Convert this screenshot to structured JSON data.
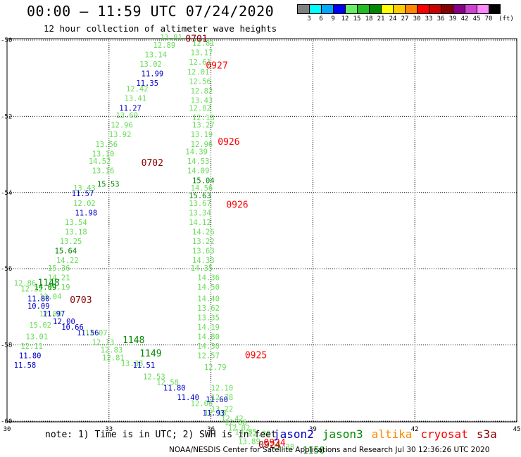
{
  "header": {
    "title": "00:00 – 11:59 UTC 07/24/2020",
    "subtitle": "12 hour collection of altimeter wave heights"
  },
  "colorbar": {
    "colors": [
      "#808080",
      "#00ffff",
      "#00a8ff",
      "#0000ff",
      "#66ee66",
      "#22bb22",
      "#008800",
      "#ffff00",
      "#ffcc00",
      "#ff8800",
      "#ff0000",
      "#cc0000",
      "#880000",
      "#880088",
      "#cc44cc",
      "#ff88ff",
      "#000000"
    ],
    "labels": [
      "3",
      "6",
      "9",
      "12",
      "15",
      "18",
      "21",
      "24",
      "27",
      "30",
      "33",
      "36",
      "39",
      "42",
      "45",
      "70"
    ],
    "unit": "(ft)"
  },
  "axes": {
    "lon_ticks": [
      "30",
      "33",
      "36",
      "39",
      "42",
      "45"
    ],
    "lat_ticks": [
      "-50",
      "-52",
      "-54",
      "-56",
      "-58",
      "-60"
    ]
  },
  "tracks": [
    {
      "sat": "jason3_light",
      "color": "#66dd55",
      "points": [
        {
          "lon": 34.5,
          "lat": -50.0,
          "v": "13.81"
        },
        {
          "lon": 35.45,
          "lat": -50.15,
          "v": "12.81"
        },
        {
          "lon": 34.3,
          "lat": -50.2,
          "v": "12.89"
        },
        {
          "lon": 35.4,
          "lat": -50.4,
          "v": "13.17"
        },
        {
          "lon": 34.05,
          "lat": -50.45,
          "v": "13.14"
        },
        {
          "lon": 35.35,
          "lat": -50.65,
          "v": "12.61"
        },
        {
          "lon": 33.9,
          "lat": -50.7,
          "v": "13.02"
        },
        {
          "lon": 35.3,
          "lat": -50.9,
          "v": "12.01"
        },
        {
          "lon": 35.35,
          "lat": -51.15,
          "v": "12.56"
        },
        {
          "lon": 33.5,
          "lat": -51.35,
          "v": "12.42"
        },
        {
          "lon": 35.4,
          "lat": -51.4,
          "v": "12.82"
        },
        {
          "lon": 33.45,
          "lat": -51.6,
          "v": "13.41"
        },
        {
          "lon": 35.4,
          "lat": -51.65,
          "v": "13.43"
        },
        {
          "lon": 35.35,
          "lat": -51.85,
          "v": "12.82"
        },
        {
          "lon": 33.2,
          "lat": -52.05,
          "v": "13.60"
        },
        {
          "lon": 35.45,
          "lat": -52.1,
          "v": "12.18"
        },
        {
          "lon": 33.05,
          "lat": -52.3,
          "v": "12.96"
        },
        {
          "lon": 35.45,
          "lat": -52.3,
          "v": "13.27"
        },
        {
          "lon": 33.0,
          "lat": -52.55,
          "v": "13.92"
        },
        {
          "lon": 35.4,
          "lat": -52.55,
          "v": "13.19"
        },
        {
          "lon": 32.6,
          "lat": -52.8,
          "v": "13.56"
        },
        {
          "lon": 35.4,
          "lat": -52.8,
          "v": "12.96"
        },
        {
          "lon": 32.5,
          "lat": -53.05,
          "v": "13.10"
        },
        {
          "lon": 35.25,
          "lat": -53.0,
          "v": "14.39"
        },
        {
          "lon": 32.4,
          "lat": -53.25,
          "v": "14.52"
        },
        {
          "lon": 35.3,
          "lat": -53.25,
          "v": "14.53"
        },
        {
          "lon": 32.5,
          "lat": -53.5,
          "v": "13.16"
        },
        {
          "lon": 35.3,
          "lat": -53.5,
          "v": "14.09"
        },
        {
          "lon": 31.95,
          "lat": -53.95,
          "v": "13.43"
        },
        {
          "lon": 35.4,
          "lat": -53.95,
          "v": "14.56"
        },
        {
          "lon": 31.95,
          "lat": -54.35,
          "v": "12.02"
        },
        {
          "lon": 35.35,
          "lat": -54.35,
          "v": "13.67"
        },
        {
          "lon": 35.35,
          "lat": -54.6,
          "v": "13.34"
        },
        {
          "lon": 31.7,
          "lat": -54.85,
          "v": "13.54"
        },
        {
          "lon": 35.35,
          "lat": -54.85,
          "v": "14.12"
        },
        {
          "lon": 31.7,
          "lat": -55.1,
          "v": "13.18"
        },
        {
          "lon": 35.45,
          "lat": -55.1,
          "v": "14.26"
        },
        {
          "lon": 31.55,
          "lat": -55.35,
          "v": "13.25"
        },
        {
          "lon": 35.45,
          "lat": -55.35,
          "v": "13.22"
        },
        {
          "lon": 35.45,
          "lat": -55.6,
          "v": "13.63"
        },
        {
          "lon": 31.45,
          "lat": -55.85,
          "v": "14.22"
        },
        {
          "lon": 35.45,
          "lat": -55.85,
          "v": "14.33"
        },
        {
          "lon": 31.2,
          "lat": -56.05,
          "v": "15.36"
        },
        {
          "lon": 35.4,
          "lat": -56.05,
          "v": "14.35"
        },
        {
          "lon": 31.2,
          "lat": -56.3,
          "v": "14.21"
        },
        {
          "lon": 35.6,
          "lat": -56.3,
          "v": "14.36"
        },
        {
          "lon": 30.2,
          "lat": -56.45,
          "v": "12.86"
        },
        {
          "lon": 31.2,
          "lat": -56.55,
          "v": "14.19"
        },
        {
          "lon": 30.4,
          "lat": -56.6,
          "v": "12.32"
        },
        {
          "lon": 35.6,
          "lat": -56.55,
          "v": "14.50"
        },
        {
          "lon": 30.95,
          "lat": -56.8,
          "v": "13.04"
        },
        {
          "lon": 35.6,
          "lat": -56.85,
          "v": "14.40"
        },
        {
          "lon": 35.6,
          "lat": -57.1,
          "v": "13.62"
        },
        {
          "lon": 30.95,
          "lat": -57.25,
          "v": "12.80"
        },
        {
          "lon": 35.6,
          "lat": -57.35,
          "v": "13.35"
        },
        {
          "lon": 30.65,
          "lat": -57.55,
          "v": "15.02"
        },
        {
          "lon": 35.6,
          "lat": -57.6,
          "v": "14.19"
        },
        {
          "lon": 32.3,
          "lat": -57.75,
          "v": "12.07"
        },
        {
          "lon": 35.6,
          "lat": -57.85,
          "v": "14.80"
        },
        {
          "lon": 30.55,
          "lat": -57.85,
          "v": "13.01"
        },
        {
          "lon": 32.5,
          "lat": -58.0,
          "v": "12.13"
        },
        {
          "lon": 35.6,
          "lat": -58.1,
          "v": "14.30"
        },
        {
          "lon": 32.75,
          "lat": -58.2,
          "v": "12.83"
        },
        {
          "lon": 30.4,
          "lat": -58.1,
          "v": "12.11"
        },
        {
          "lon": 35.6,
          "lat": -58.35,
          "v": "12.57"
        },
        {
          "lon": 32.8,
          "lat": -58.4,
          "v": "12.81"
        },
        {
          "lon": 33.35,
          "lat": -58.55,
          "v": "13.38"
        },
        {
          "lon": 35.8,
          "lat": -58.65,
          "v": "12.79"
        },
        {
          "lon": 34.0,
          "lat": -58.9,
          "v": "12.53"
        },
        {
          "lon": 34.4,
          "lat": -59.05,
          "v": "12.58"
        },
        {
          "lon": 36.0,
          "lat": -59.2,
          "v": "12.10"
        },
        {
          "lon": 35.4,
          "lat": -59.6,
          "v": "12.06"
        },
        {
          "lon": 36.0,
          "lat": -59.45,
          "v": "12.78"
        },
        {
          "lon": 36.0,
          "lat": -59.75,
          "v": "13.22"
        },
        {
          "lon": 35.8,
          "lat": -59.85,
          "v": "12.18"
        },
        {
          "lon": 36.3,
          "lat": -60.0,
          "v": "12.42"
        },
        {
          "lon": 36.4,
          "lat": -60.1,
          "v": "12.86"
        },
        {
          "lon": 36.5,
          "lat": -60.25,
          "v": "12.02"
        },
        {
          "lon": 36.7,
          "lat": -60.35,
          "v": "14.85"
        },
        {
          "lon": 37.1,
          "lat": -60.4,
          "v": "12.80"
        },
        {
          "lon": 36.8,
          "lat": -60.6,
          "v": "13.89"
        },
        {
          "lon": 37.8,
          "lat": -60.75,
          "v": "12.38"
        }
      ]
    },
    {
      "sat": "jason2",
      "color": "#0000cc",
      "points": [
        {
          "lon": 33.95,
          "lat": -50.95,
          "v": "11.99"
        },
        {
          "lon": 33.8,
          "lat": -51.2,
          "v": "11.35"
        },
        {
          "lon": 33.3,
          "lat": -51.85,
          "v": "11.27"
        },
        {
          "lon": 31.9,
          "lat": -54.1,
          "v": "11.57"
        },
        {
          "lon": 32.0,
          "lat": -54.6,
          "v": "11.98"
        },
        {
          "lon": 30.6,
          "lat": -56.85,
          "v": "11.80"
        },
        {
          "lon": 30.6,
          "lat": -57.05,
          "v": "10.09"
        },
        {
          "lon": 31.35,
          "lat": -57.45,
          "v": "12.00"
        },
        {
          "lon": 31.6,
          "lat": -57.6,
          "v": "10.66"
        },
        {
          "lon": 32.05,
          "lat": -57.75,
          "v": "11.56"
        },
        {
          "lon": 30.35,
          "lat": -58.35,
          "v": "11.80"
        },
        {
          "lon": 30.2,
          "lat": -58.6,
          "v": "11.58"
        },
        {
          "lon": 33.7,
          "lat": -58.6,
          "v": "11.51"
        },
        {
          "lon": 34.6,
          "lat": -59.2,
          "v": "11.80"
        },
        {
          "lon": 35.0,
          "lat": -59.45,
          "v": "11.40"
        },
        {
          "lon": 35.85,
          "lat": -59.5,
          "v": "11.60"
        },
        {
          "lon": 35.75,
          "lat": -59.85,
          "v": "11.93"
        },
        {
          "lon": 31.05,
          "lat": -57.25,
          "v": "11.97"
        }
      ]
    },
    {
      "sat": "jason3_dark",
      "color": "#008800",
      "points": [
        {
          "lon": 32.65,
          "lat": -53.85,
          "v": "15.53"
        },
        {
          "lon": 35.45,
          "lat": -53.75,
          "v": "15.04"
        },
        {
          "lon": 35.35,
          "lat": -54.15,
          "v": "15.63"
        },
        {
          "lon": 31.4,
          "lat": -55.6,
          "v": "15.64"
        },
        {
          "lon": 30.8,
          "lat": -56.55,
          "v": "14.09"
        }
      ]
    }
  ],
  "time_labels": [
    {
      "lon": 35.25,
      "lat": -50.05,
      "text": "0701",
      "color": "#880000"
    },
    {
      "lon": 35.85,
      "lat": -50.75,
      "text": "0927",
      "color": "#ff0000"
    },
    {
      "lon": 36.2,
      "lat": -52.75,
      "text": "0926",
      "color": "#ff0000"
    },
    {
      "lon": 33.95,
      "lat": -53.3,
      "text": "0702",
      "color": "#880000"
    },
    {
      "lon": 36.45,
      "lat": -54.4,
      "text": "0926",
      "color": "#ff0000"
    },
    {
      "lon": 31.85,
      "lat": -56.9,
      "text": "0703",
      "color": "#880000"
    },
    {
      "lon": 30.9,
      "lat": -56.45,
      "text": "1148",
      "color": "#008800"
    },
    {
      "lon": 33.4,
      "lat": -57.95,
      "text": "1148",
      "color": "#008800"
    },
    {
      "lon": 33.9,
      "lat": -58.3,
      "text": "1149",
      "color": "#008800"
    },
    {
      "lon": 37.0,
      "lat": -58.35,
      "text": "0925",
      "color": "#ff0000"
    },
    {
      "lon": 37.4,
      "lat": -60.7,
      "text": "0924",
      "color": "#880000"
    },
    {
      "lon": 37.55,
      "lat": -60.65,
      "text": "0924",
      "color": "#ff0000"
    },
    {
      "lon": 38.7,
      "lat": -60.85,
      "text": "1150",
      "color": "#008800"
    }
  ],
  "footer": {
    "note": "note: 1) Time is in UTC; 2) SWH is in feet",
    "satellites": [
      {
        "name": "jason2",
        "color": "#0000cc"
      },
      {
        "name": "jason3",
        "color": "#008800"
      },
      {
        "name": "altika",
        "color": "#ff8800"
      },
      {
        "name": "cryosat",
        "color": "#ff0000"
      },
      {
        "name": "s3a",
        "color": "#880000"
      }
    ],
    "credit": "NOAA/NESDIS Center for Satellite Applications and Research    Jul 30 12:36:26 UTC 2020"
  }
}
